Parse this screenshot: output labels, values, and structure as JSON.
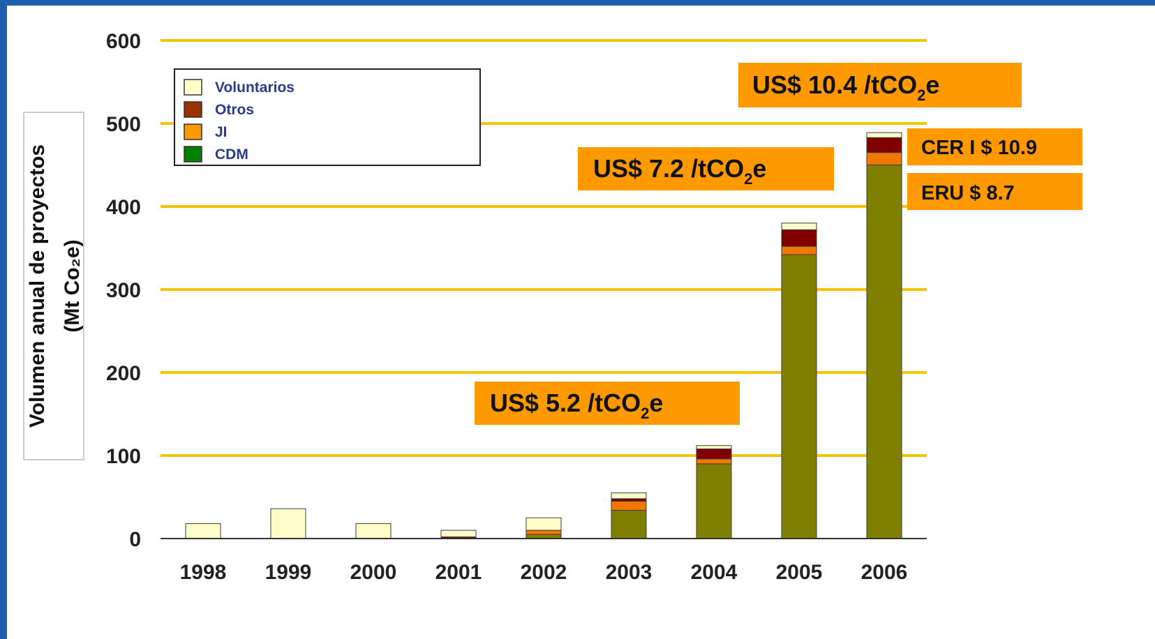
{
  "chart_data": {
    "type": "bar",
    "stacked": true,
    "categories": [
      "1998",
      "1999",
      "2000",
      "2001",
      "2002",
      "2003",
      "2004",
      "2005",
      "2006"
    ],
    "series": [
      {
        "name": "CDM",
        "color": "#808000",
        "values": [
          0,
          0,
          0,
          0,
          5,
          34,
          90,
          342,
          450
        ]
      },
      {
        "name": "JI",
        "color": "#f07800",
        "values": [
          0,
          0,
          0,
          0,
          5,
          11,
          6,
          10,
          15
        ]
      },
      {
        "name": "Otros",
        "color": "#800000",
        "values": [
          0,
          0,
          0,
          2,
          0,
          3,
          12,
          20,
          18
        ]
      },
      {
        "name": "Voluntarios",
        "color": "#ffffcc",
        "values": [
          18,
          36,
          18,
          8,
          15,
          7,
          4,
          8,
          6
        ]
      }
    ],
    "legend": {
      "placement": "top-left",
      "items": [
        {
          "label": "Voluntarios",
          "color": "#ffffcc"
        },
        {
          "label": "Otros",
          "color": "#993300"
        },
        {
          "label": "JI",
          "color": "#ff9900"
        },
        {
          "label": "CDM",
          "color": "#008000"
        }
      ]
    },
    "ylabel_line1": "Volumen anual de proyectos",
    "ylabel_line2": "(Mt Co₂e)",
    "xlabel": "",
    "ylim": [
      0,
      600
    ],
    "yticks": [
      0,
      100,
      200,
      300,
      400,
      500,
      600
    ],
    "grid": true,
    "gridline_color": "#f5c400",
    "annotations": [
      {
        "id": "price-2003",
        "prefix": "US$ 5.2 /tCO",
        "sub": "2",
        "suffix": "e"
      },
      {
        "id": "price-2005",
        "prefix": "US$ 7.2 /tCO",
        "sub": "2",
        "suffix": "e"
      },
      {
        "id": "price-2006",
        "prefix": "US$ 10.4 /tCO",
        "sub": "2",
        "suffix": "e"
      },
      {
        "id": "cer",
        "prefix": "CER I  $ 10.9",
        "sub": "",
        "suffix": ""
      },
      {
        "id": "eru",
        "prefix": "ERU    $  8.7",
        "sub": "",
        "suffix": ""
      }
    ],
    "annotation_color": "#ff9900"
  }
}
